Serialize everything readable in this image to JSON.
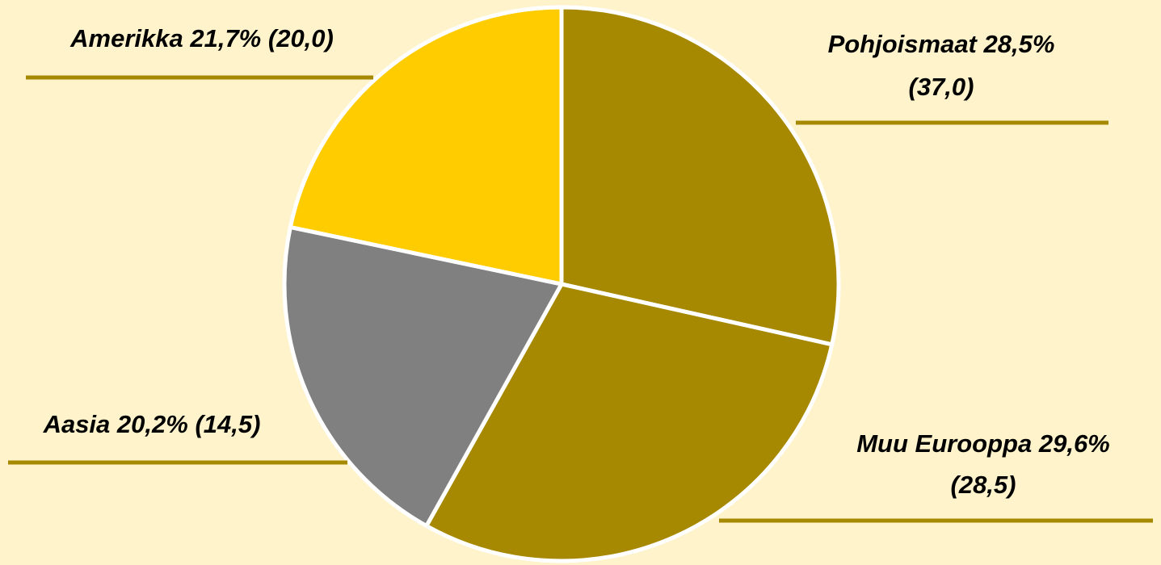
{
  "chart_data": {
    "type": "pie",
    "categories": [
      "Pohjoismaat",
      "Muu Eurooppa",
      "Aasia",
      "Amerikka"
    ],
    "values": [
      28.5,
      29.6,
      20.2,
      21.7
    ],
    "value_labels": [
      "28,5%",
      "29,6%",
      "20,2%",
      "21,7%"
    ],
    "prior_values": [
      37.0,
      28.5,
      14.5,
      20.0
    ],
    "prior_value_labels": [
      "(37,0)",
      "(28,5)",
      "(14,5)",
      "(20,0)"
    ],
    "colors": [
      "#a68900",
      "#a68900",
      "#808080",
      "#ffcc00"
    ],
    "start_angle": 0,
    "direction": "clockwise"
  }
}
